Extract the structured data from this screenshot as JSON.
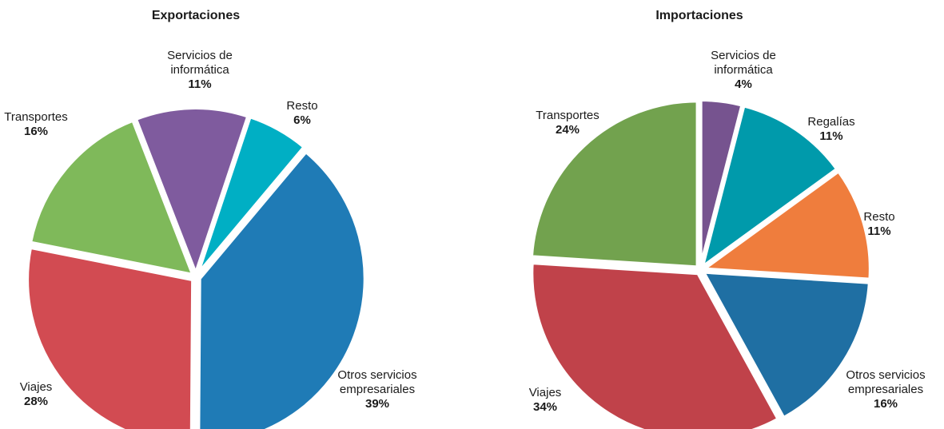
{
  "chart_data": [
    {
      "type": "pie",
      "title": "Exportaciones",
      "categories": [
        [
          "Otros servicios",
          "empresariales"
        ],
        [
          "Viajes"
        ],
        [
          "Transportes"
        ],
        [
          "Servicios de",
          "informática"
        ],
        [
          "Resto"
        ]
      ],
      "values": [
        39,
        28,
        16,
        11,
        6
      ],
      "value_labels": [
        "39%",
        "28%",
        "16%",
        "11%",
        "6%"
      ],
      "colors": [
        "#1f7bb6",
        "#d24b52",
        "#7fb95a",
        "#7f5b9e",
        "#00afc4"
      ]
    },
    {
      "type": "pie",
      "title": "Importaciones",
      "categories": [
        [
          "Servicios de",
          "informática"
        ],
        [
          "Regalías"
        ],
        [
          "Resto"
        ],
        [
          "Otros servicios",
          "empresariales"
        ],
        [
          "Viajes"
        ],
        [
          "Transportes"
        ]
      ],
      "values": [
        4,
        11,
        11,
        16,
        34,
        24
      ],
      "value_labels": [
        "4%",
        "11%",
        "11%",
        "16%",
        "34%",
        "24%"
      ],
      "colors": [
        "#76538f",
        "#009aab",
        "#ef7d3d",
        "#1f6fa3",
        "#c0424a",
        "#72a24e"
      ]
    }
  ]
}
